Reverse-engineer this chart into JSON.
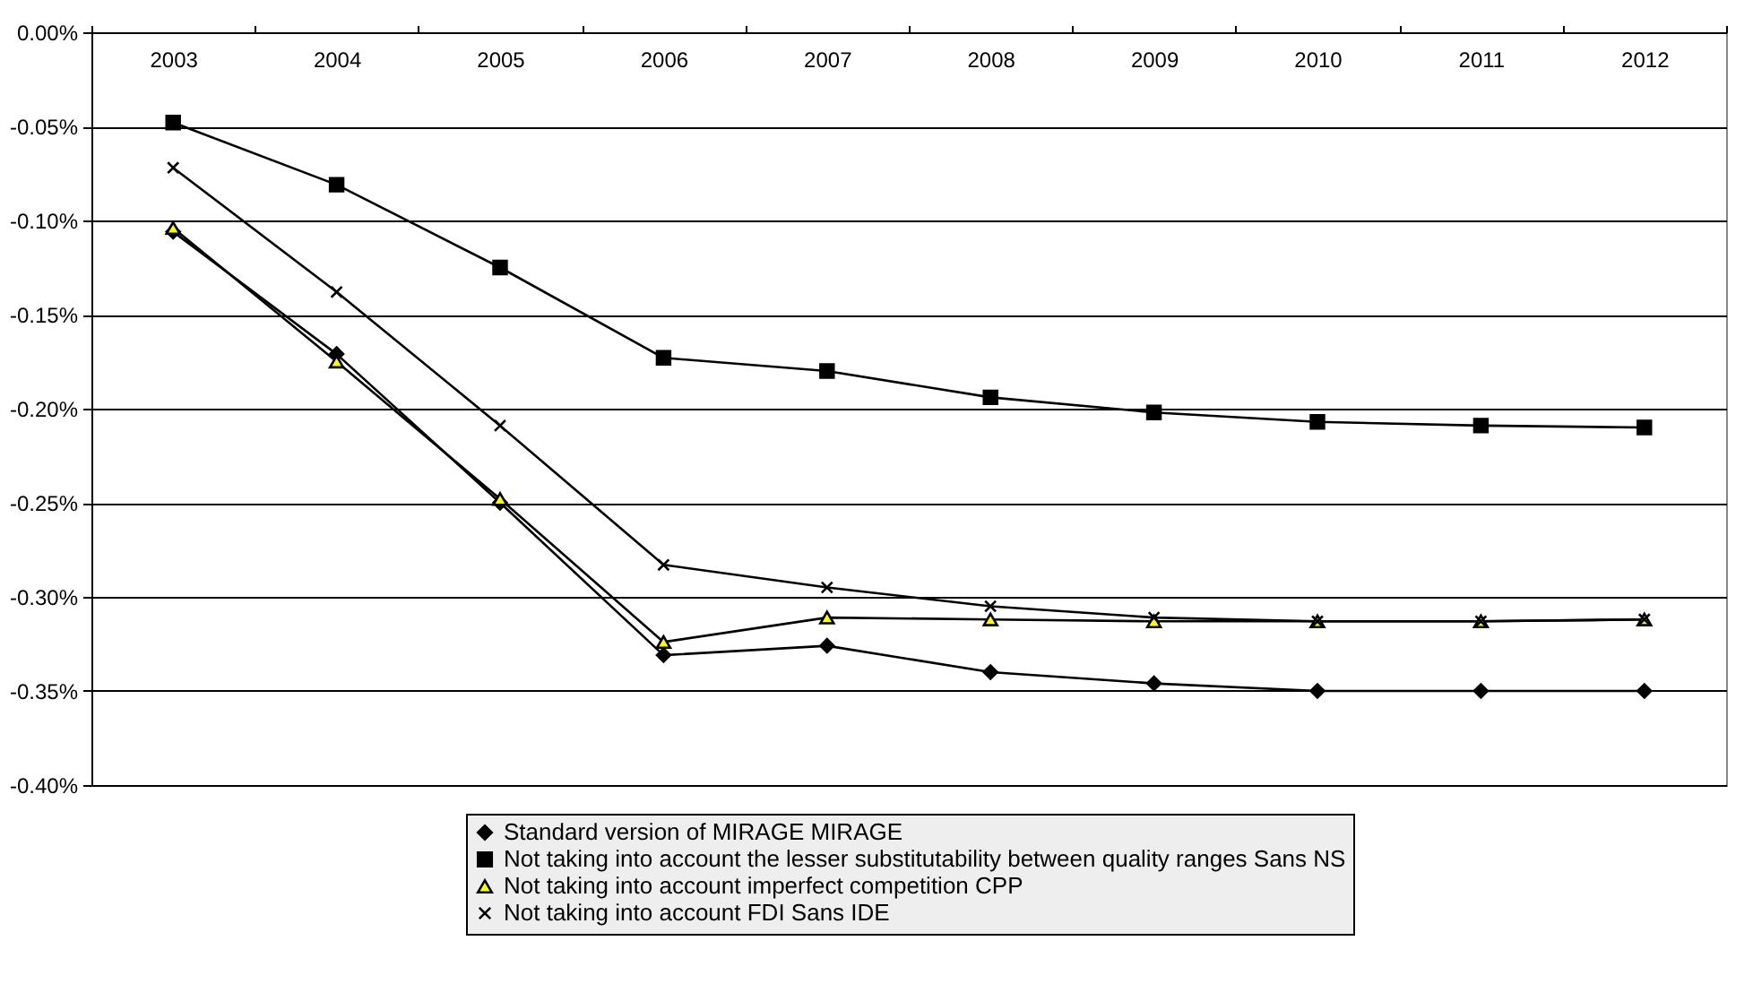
{
  "chart_data": {
    "type": "line",
    "categories": [
      "2003",
      "2004",
      "2005",
      "2006",
      "2007",
      "2008",
      "2009",
      "2010",
      "2011",
      "2012"
    ],
    "series": [
      {
        "name": "Standard version of MIRAGE MIRAGE",
        "color": "#000000",
        "marker": "diamond",
        "values": [
          -0.106,
          -0.171,
          -0.25,
          -0.331,
          -0.326,
          -0.34,
          -0.346,
          -0.35,
          -0.35,
          -0.35
        ]
      },
      {
        "name": "Not taking into account the lesser substitutability between quality ranges Sans NS",
        "color": "#000000",
        "marker": "square",
        "values": [
          -0.048,
          -0.081,
          -0.125,
          -0.173,
          -0.18,
          -0.194,
          -0.202,
          -0.207,
          -0.209,
          -0.21
        ]
      },
      {
        "name": "Not taking into account imperfect competition CPP",
        "color": "#000000",
        "marker": "triangle",
        "values": [
          -0.104,
          -0.175,
          -0.248,
          -0.324,
          -0.311,
          -0.312,
          -0.313,
          -0.313,
          -0.313,
          -0.312
        ]
      },
      {
        "name": "Not taking into account FDI Sans IDE",
        "color": "#000000",
        "marker": "cross",
        "values": [
          -0.072,
          -0.138,
          -0.209,
          -0.283,
          -0.295,
          -0.305,
          -0.311,
          -0.313,
          -0.313,
          -0.312
        ]
      }
    ],
    "ylim": [
      -0.4,
      0
    ],
    "yticks": [
      {
        "value": 0,
        "label": "0.00%"
      },
      {
        "value": -0.05,
        "label": "-0.05%"
      },
      {
        "value": -0.1,
        "label": "-0.10%"
      },
      {
        "value": -0.15,
        "label": "-0.15%"
      },
      {
        "value": -0.2,
        "label": "-0.20%"
      },
      {
        "value": -0.25,
        "label": "-0.25%"
      },
      {
        "value": -0.3,
        "label": "-0.30%"
      },
      {
        "value": -0.35,
        "label": "-0.35%"
      },
      {
        "value": -0.4,
        "label": "-0.40%"
      }
    ],
    "grid": "y",
    "legend": "bottom",
    "line_style": "solid"
  }
}
